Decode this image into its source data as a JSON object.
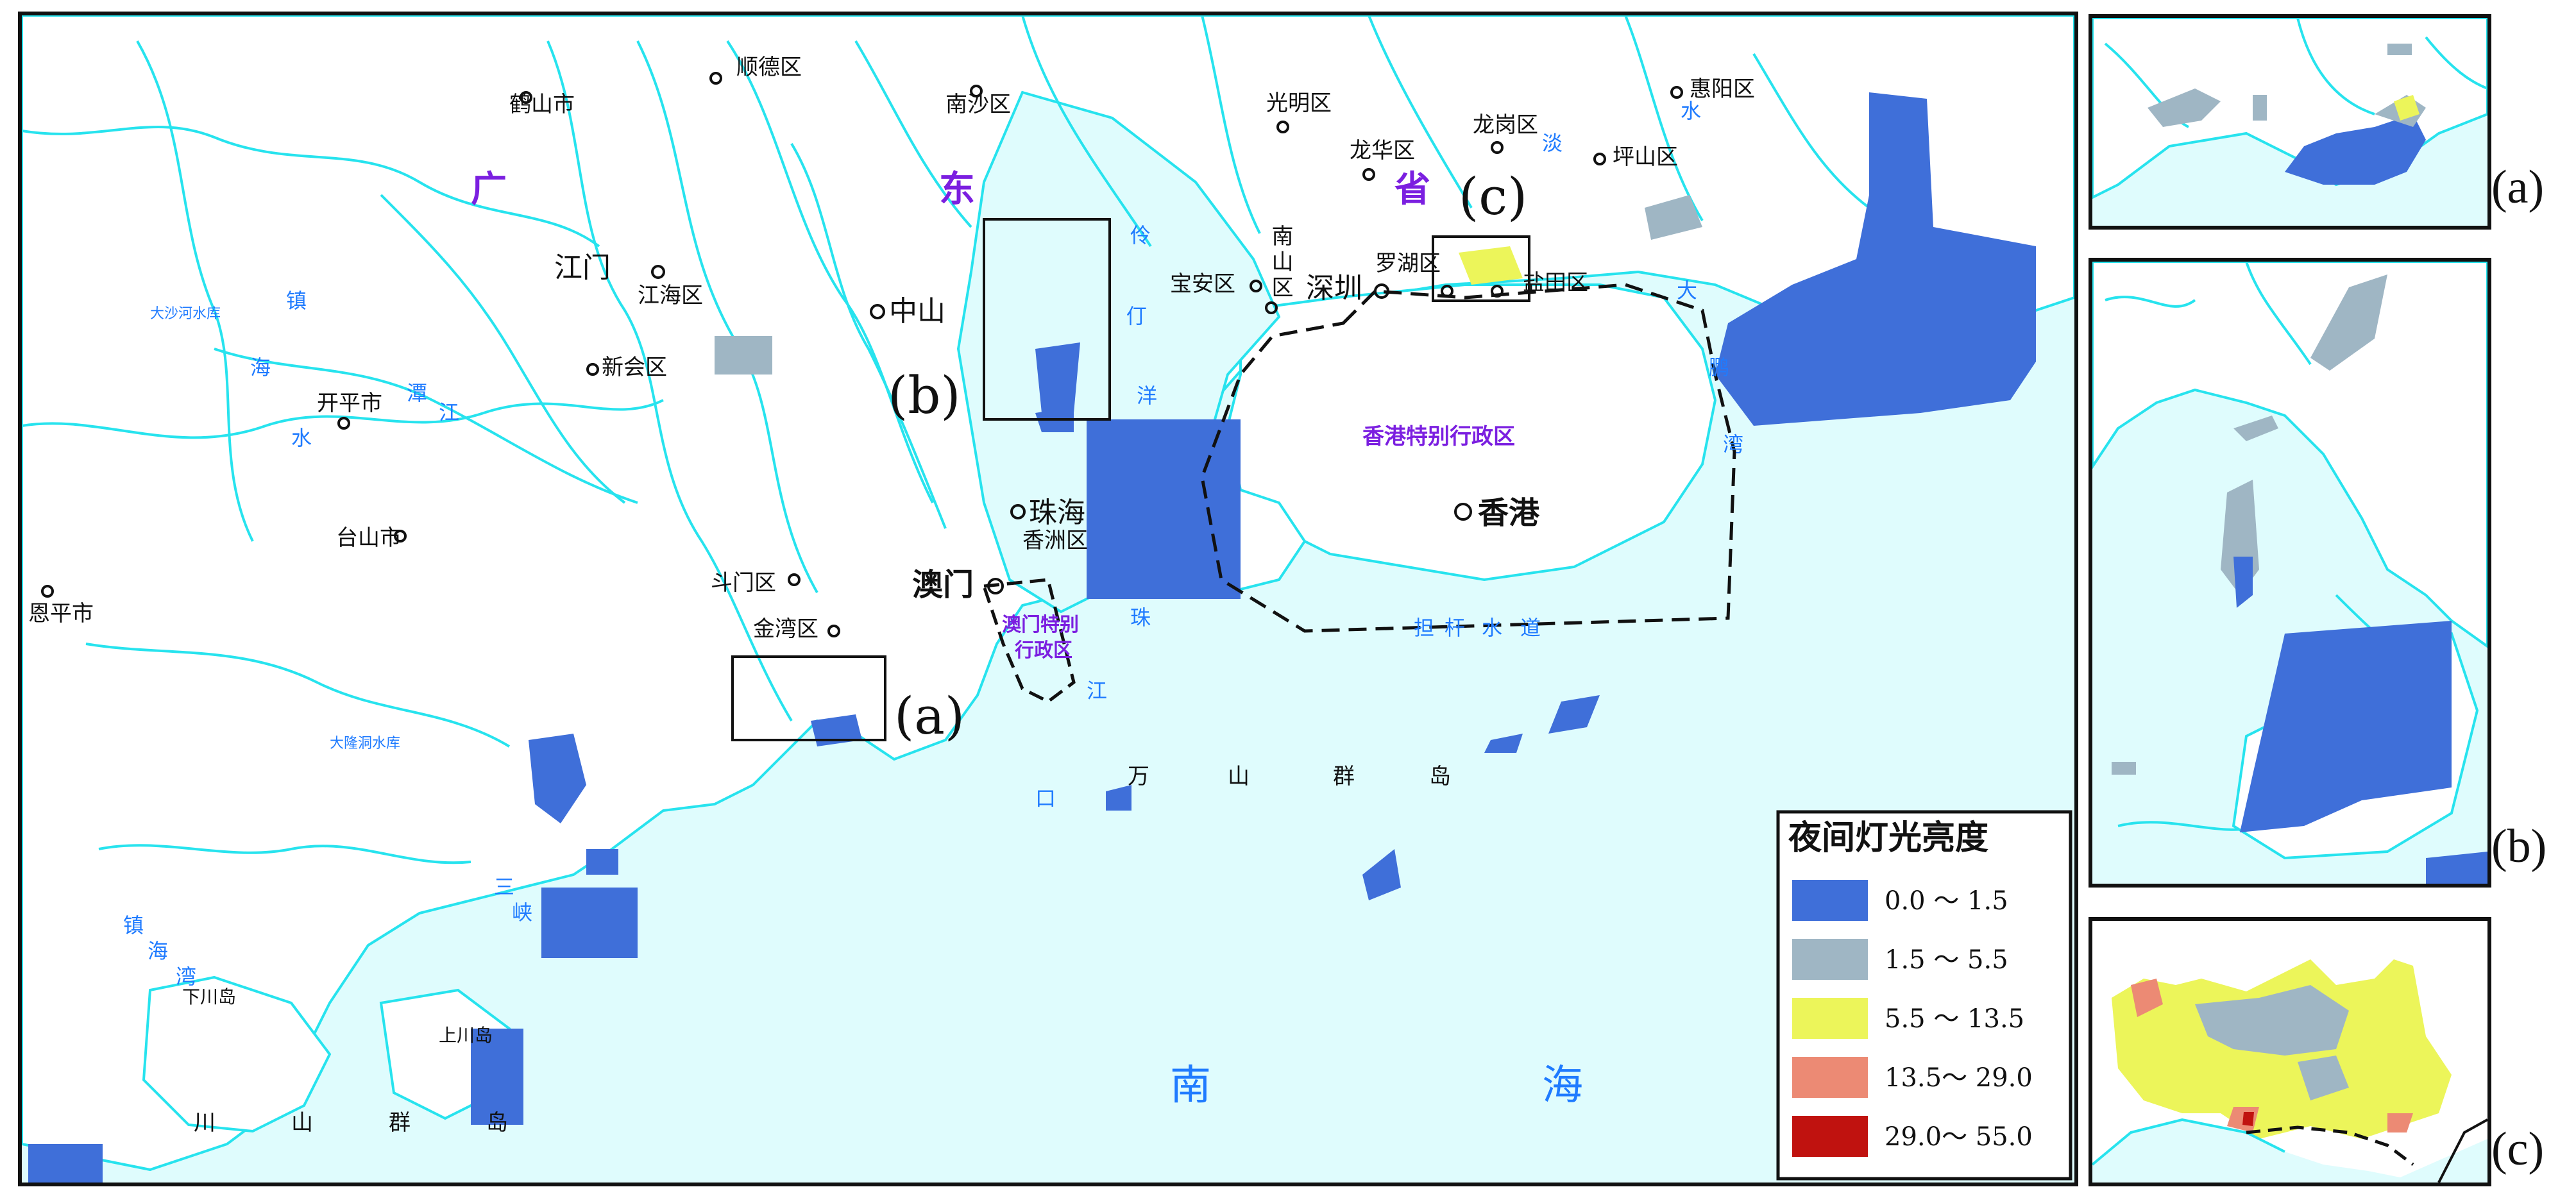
{
  "map": {
    "province_chars": [
      "广",
      "东",
      "省"
    ],
    "cities_major": [
      {
        "id": "jiangmen",
        "name": "江门"
      },
      {
        "id": "zhongshan",
        "name": "中山"
      },
      {
        "id": "zhuhai",
        "name": "珠海"
      },
      {
        "id": "macau",
        "name": "澳门"
      },
      {
        "id": "shenzhen",
        "name": "深圳"
      },
      {
        "id": "hongkong",
        "name": "香港"
      }
    ],
    "cities_minor": [
      {
        "id": "heshan",
        "name": "鹤山市"
      },
      {
        "id": "shunde",
        "name": "顺德区"
      },
      {
        "id": "nansha",
        "name": "南沙区"
      },
      {
        "id": "guangming",
        "name": "光明区"
      },
      {
        "id": "longhua",
        "name": "龙华区"
      },
      {
        "id": "longgang",
        "name": "龙岗区"
      },
      {
        "id": "huiyang",
        "name": "惠阳区"
      },
      {
        "id": "pingshan",
        "name": "坪山区"
      },
      {
        "id": "jianghai",
        "name": "江海区"
      },
      {
        "id": "xinhui",
        "name": "新会区"
      },
      {
        "id": "kaiping",
        "name": "开平市"
      },
      {
        "id": "taishan",
        "name": "台山市"
      },
      {
        "id": "enping",
        "name": "恩平市"
      },
      {
        "id": "doumen",
        "name": "斗门区"
      },
      {
        "id": "jinwan",
        "name": "金湾区"
      },
      {
        "id": "xiangzhou",
        "name": "香洲区"
      },
      {
        "id": "baoan",
        "name": "宝安区"
      },
      {
        "id": "nanshan",
        "name": "南山区"
      },
      {
        "id": "luohu",
        "name": "罗湖区"
      },
      {
        "id": "yantian",
        "name": "盐田区"
      }
    ],
    "regions": {
      "hk_sar": "香港特别行政区",
      "macau_sar_line1": "澳门特别",
      "macau_sar_line2": "行政区"
    },
    "water_labels": {
      "tanjiang": [
        "潭",
        "江"
      ],
      "zhenhai": [
        "镇",
        "海"
      ],
      "lingding": [
        "伶",
        "仃",
        "洋"
      ],
      "pearl_mouth": [
        "珠",
        "江",
        "口"
      ],
      "danggan": [
        "担",
        "杆",
        "水",
        "道"
      ],
      "dapeng": [
        "大",
        "鹏",
        "湾"
      ],
      "danshui": [
        "淡",
        "水"
      ],
      "sanxia": [
        "三",
        "峡"
      ],
      "zhenhaiwan": [
        "镇",
        "海",
        "湾"
      ],
      "tanjiang_low": [
        "水"
      ],
      "dashahe": "大沙河水库",
      "dalonghe": "大隆洞水库",
      "nanhai": [
        "南",
        "海"
      ]
    },
    "islands": {
      "wanshan": [
        "万",
        "山",
        "群",
        "岛"
      ],
      "chuanshan": [
        "川",
        "山",
        "群",
        "岛"
      ],
      "xiachuan": "下川岛",
      "shangchuan": "上川岛"
    },
    "inset_markers": [
      "(a)",
      "(b)",
      "(c)"
    ]
  },
  "legend": {
    "title": "夜间灯光亮度",
    "items": [
      {
        "range": "0.0 ～ 1.5",
        "color": "#3f6fd9"
      },
      {
        "range": "1.5 ～ 5.5",
        "color": "#9fb6c4"
      },
      {
        "range": "5.5 ～ 13.5",
        "color": "#ecf55a"
      },
      {
        "range": "13.5～ 29.0",
        "color": "#ec8a74"
      },
      {
        "range": "29.0～ 55.0",
        "color": "#c0120f"
      }
    ]
  },
  "insets": [
    {
      "id": "a",
      "caption": "(a)"
    },
    {
      "id": "b",
      "caption": "(b)"
    },
    {
      "id": "c",
      "caption": "(c)"
    }
  ],
  "colors": {
    "sea": "#dffcfd",
    "land": "#ffffff",
    "rivers": "#27e3ee",
    "water_label": "#1f7bff",
    "province_label": "#7b1fe0",
    "sar_label": "#7b1fe0",
    "boundary": "#111111"
  }
}
